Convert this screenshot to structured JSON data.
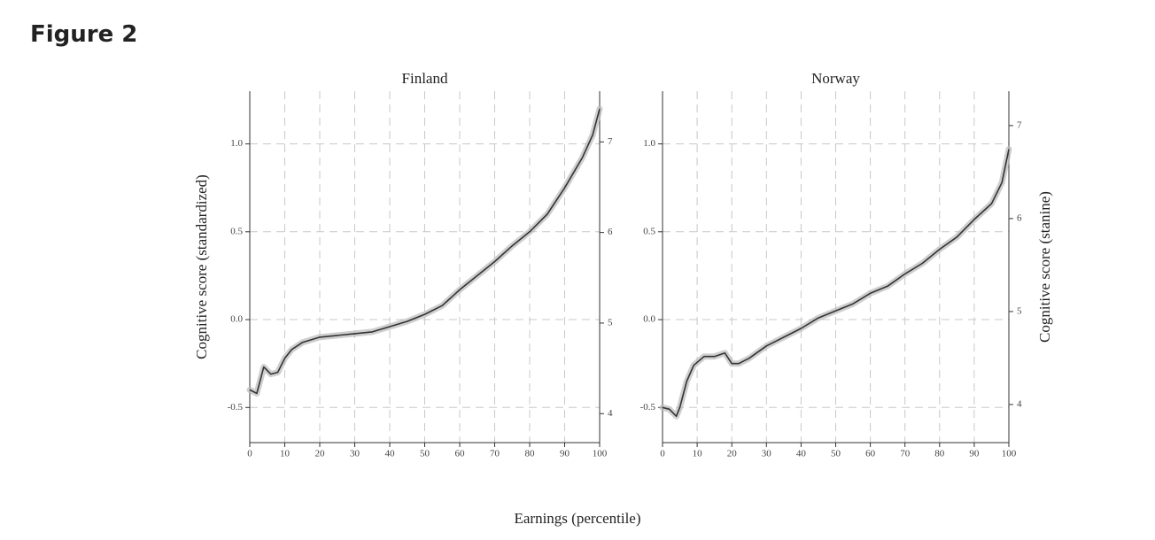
{
  "heading": "Figure 2",
  "xlabel": "Earnings (percentile)",
  "chart_data": [
    {
      "type": "line",
      "title": "Finland",
      "ylabel": "Cognitive score (standardized)",
      "color": "#333333",
      "x": [
        0,
        2,
        4,
        6,
        8,
        10,
        12,
        15,
        20,
        25,
        30,
        35,
        40,
        45,
        50,
        55,
        60,
        65,
        70,
        75,
        80,
        85,
        90,
        95,
        98,
        100
      ],
      "values": [
        -0.4,
        -0.42,
        -0.27,
        -0.31,
        -0.3,
        -0.22,
        -0.17,
        -0.13,
        -0.1,
        -0.09,
        -0.08,
        -0.07,
        -0.04,
        -0.01,
        0.03,
        0.08,
        0.17,
        0.25,
        0.33,
        0.42,
        0.5,
        0.6,
        0.75,
        0.92,
        1.05,
        1.2
      ],
      "xlim": [
        0,
        100
      ],
      "xticks": [
        0,
        10,
        20,
        30,
        40,
        50,
        60,
        70,
        80,
        90,
        100
      ],
      "ylim": [
        -0.7,
        1.3
      ],
      "yticks": [
        -0.5,
        {
          "value": 0,
          "label": "0.0"
        },
        0.5,
        {
          "value": 1,
          "label": "1.0"
        }
      ],
      "y2lim": [
        3.68,
        7.56
      ],
      "y2ticks": [
        4,
        5,
        6,
        7
      ],
      "grid": true
    },
    {
      "type": "line",
      "title": "Norway",
      "y2label": "Cognitive score (stanine)",
      "color": "#333333",
      "x": [
        0,
        2,
        4,
        5,
        7,
        9,
        12,
        15,
        18,
        20,
        22,
        25,
        30,
        35,
        40,
        45,
        50,
        55,
        60,
        65,
        70,
        75,
        80,
        85,
        90,
        95,
        98,
        100
      ],
      "values": [
        -0.5,
        -0.51,
        -0.55,
        -0.5,
        -0.35,
        -0.26,
        -0.21,
        -0.21,
        -0.19,
        -0.25,
        -0.25,
        -0.22,
        -0.15,
        -0.1,
        -0.05,
        0.01,
        0.05,
        0.09,
        0.15,
        0.19,
        0.26,
        0.32,
        0.4,
        0.47,
        0.57,
        0.66,
        0.78,
        0.97
      ],
      "xlim": [
        0,
        100
      ],
      "xticks": [
        0,
        10,
        20,
        30,
        40,
        50,
        60,
        70,
        80,
        90,
        100
      ],
      "ylim": [
        -0.7,
        1.3
      ],
      "yticks": [
        -0.5,
        {
          "value": 0,
          "label": "0.0"
        },
        0.5,
        {
          "value": 1,
          "label": "1.0"
        }
      ],
      "y2lim": [
        3.59,
        7.37
      ],
      "y2ticks": [
        4,
        5,
        6,
        7
      ],
      "grid": true
    }
  ]
}
